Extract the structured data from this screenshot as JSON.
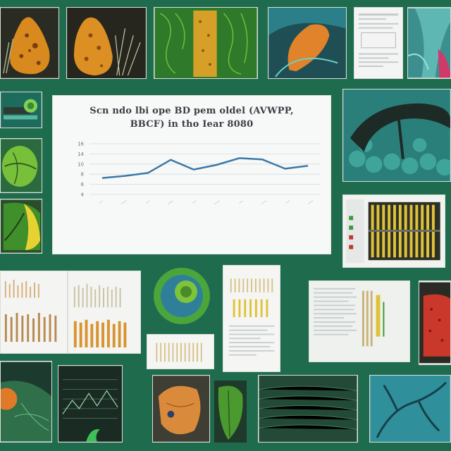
{
  "main_chart": {
    "title_line1": "Scn ndo lbi ope BD pem oldel (AVWPP,",
    "title_line2": "BBCF) in tho Iear 8080",
    "y_ticks": [
      "16",
      "14",
      "10",
      "8",
      "8",
      "4"
    ],
    "x_labels": [
      "---",
      "----",
      "---",
      "----",
      "---",
      "----",
      "---",
      "----",
      "---",
      "----"
    ],
    "x_axis_title": "",
    "series_color": "#3d78a8",
    "values": [
      7.9,
      8.4,
      9.1,
      12.2,
      9.9,
      11.0,
      12.6,
      12.3,
      10.1,
      10.8
    ],
    "y_range": [
      4,
      16
    ]
  },
  "chart_data": {
    "type": "line",
    "title": "Scn ndo lbi ope BD pem oldel (AVWPP, BBCF) in tho Iear 8080",
    "categories": [
      "---",
      "----",
      "---",
      "----",
      "---",
      "----",
      "---",
      "----",
      "---",
      "----"
    ],
    "series": [
      {
        "values": [
          7.9,
          8.4,
          9.1,
          12.2,
          9.9,
          11.0,
          12.6,
          12.3,
          10.1,
          10.8
        ]
      }
    ],
    "ylim": [
      4,
      16
    ],
    "grid": true
  },
  "colors": {
    "background": "#1f6b4e",
    "orange_leaf": "#d98a1f",
    "green_leaf": "#4a9a2f",
    "teal": "#2f8f86",
    "yellow_bars": "#e0c23a"
  },
  "thumbnails": [
    {
      "name": "thumb-orange-leaf-1",
      "icon": "orange-leaf-icon"
    },
    {
      "name": "thumb-orange-leaf-2",
      "icon": "orange-leaf-icon"
    },
    {
      "name": "thumb-green-cells",
      "icon": "green-cells-icon"
    },
    {
      "name": "thumb-teal-orange",
      "icon": "teal-leaf-icon"
    },
    {
      "name": "thumb-document-1",
      "icon": "document-icon"
    },
    {
      "name": "thumb-teal-plant",
      "icon": "teal-plant-icon"
    },
    {
      "name": "thumb-cross-section",
      "icon": "cross-section-icon"
    },
    {
      "name": "thumb-green-circle-1",
      "icon": "green-circle-icon"
    },
    {
      "name": "thumb-green-yellow",
      "icon": "green-yellow-leaf-icon"
    },
    {
      "name": "thumb-teal-arch",
      "icon": "teal-arch-icon"
    },
    {
      "name": "thumb-yellow-bars",
      "icon": "bar-chart-icon"
    },
    {
      "name": "thumb-sheet-bars-1",
      "icon": "bar-chart-icon"
    },
    {
      "name": "thumb-sheet-bars-2",
      "icon": "bar-chart-icon"
    },
    {
      "name": "thumb-green-circle-2",
      "icon": "green-circle-icon"
    },
    {
      "name": "thumb-yellow-doc",
      "icon": "document-icon"
    },
    {
      "name": "thumb-text-doc",
      "icon": "document-icon"
    },
    {
      "name": "thumb-red-leaf",
      "icon": "red-leaf-icon"
    },
    {
      "name": "thumb-dark-plot-1",
      "icon": "dark-plot-icon"
    },
    {
      "name": "thumb-dark-plot-2",
      "icon": "dark-plot-icon"
    },
    {
      "name": "thumb-orange-bottom",
      "icon": "orange-leaf-icon"
    },
    {
      "name": "thumb-green-small",
      "icon": "green-leaf-icon"
    },
    {
      "name": "thumb-green-texture",
      "icon": "texture-icon"
    },
    {
      "name": "thumb-teal-branches",
      "icon": "teal-branches-icon"
    }
  ]
}
